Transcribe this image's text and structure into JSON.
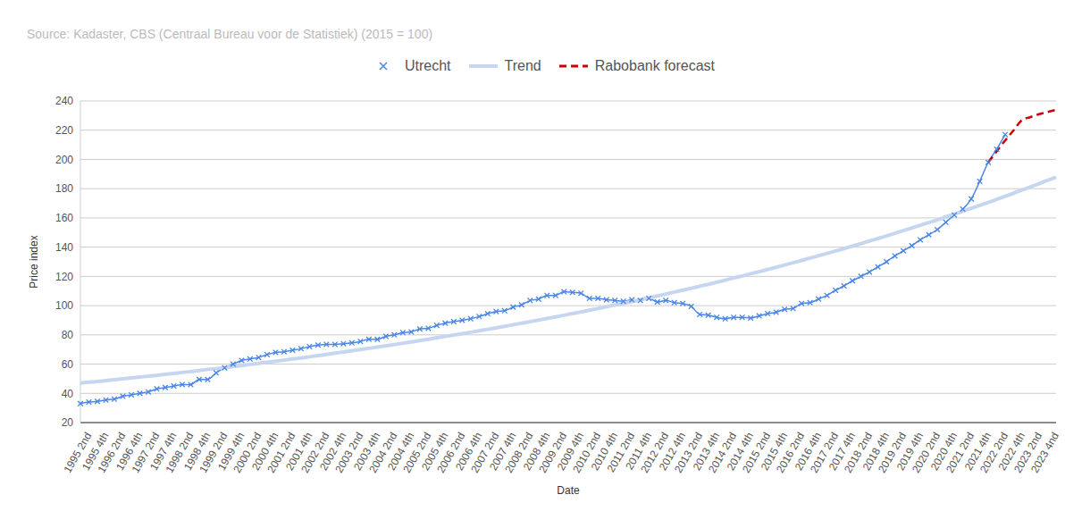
{
  "chart_data": {
    "type": "line",
    "title": "Source: Kadaster, CBS (Centraal Bureau voor de Statistiek) (2015 = 100)",
    "x_label": "Date",
    "y_label": "Price index",
    "legend": "top",
    "grid": true,
    "categories": [
      null,
      "1995 2nd",
      null,
      "1995 4th",
      null,
      "1996 2nd",
      null,
      "1996 4th",
      null,
      "1997 2nd",
      null,
      "1997 4th",
      null,
      "1998 2nd",
      null,
      "1998 4th",
      null,
      "1999 2nd",
      null,
      "1999 4th",
      null,
      "2000 2nd",
      null,
      "2000 4th",
      null,
      "2001 2nd",
      null,
      "2001 4th",
      null,
      "2002 2nd",
      null,
      "2002 4th",
      null,
      "2003 2nd",
      null,
      "2003 4th",
      null,
      "2004 2nd",
      null,
      "2004 4th",
      null,
      "2005 2nd",
      null,
      "2005 4th",
      null,
      "2006 2nd",
      null,
      "2006 4th",
      null,
      "2007 2nd",
      null,
      "2007 4th",
      null,
      "2008 2nd",
      null,
      "2008 4th",
      null,
      "2009 2nd",
      null,
      "2009 4th",
      null,
      "2010 2nd",
      null,
      "2010 4th",
      null,
      "2011 2nd",
      null,
      "2011 4th",
      null,
      "2012 2nd",
      null,
      "2012 4th",
      null,
      "2013 2nd",
      null,
      "2013 4th",
      null,
      "2014 2nd",
      null,
      "2014 4th",
      null,
      "2015 2nd",
      null,
      "2015 4th",
      null,
      "2016 2nd",
      null,
      "2016 4th",
      null,
      "2017 2nd",
      null,
      "2017 4th",
      null,
      "2018 2nd",
      null,
      "2018 4th",
      null,
      "2019 2nd",
      null,
      "2019 4th",
      null,
      "2020 2nd",
      null,
      "2020 4th",
      null,
      "2021 2nd",
      null,
      "2021 4th",
      null,
      "2022 2nd",
      null,
      "2022 4th",
      null,
      "2023 2nd",
      null,
      "2023 4nd"
    ],
    "series": [
      {
        "name": "Utrecht",
        "color": "#4a86e8",
        "marker": "x",
        "line_style": "solid",
        "values": [
          33,
          34,
          34.5,
          35.5,
          36,
          38,
          39,
          40,
          41,
          43,
          44,
          45,
          46,
          46,
          49.5,
          49.5,
          54,
          57.5,
          60,
          62.5,
          63.5,
          64.5,
          66.5,
          68,
          68.5,
          69.5,
          70.5,
          72,
          73,
          73.5,
          73.5,
          74,
          74.5,
          75.5,
          77,
          77,
          79,
          80,
          81.5,
          82,
          84,
          84.5,
          86.5,
          88,
          89,
          90,
          91,
          92.5,
          94.5,
          96,
          96.5,
          99,
          100.5,
          103.5,
          104.5,
          107,
          107,
          109.5,
          109,
          108.5,
          105,
          105,
          104,
          103.5,
          103,
          104,
          103.5,
          105,
          102.5,
          103.5,
          102,
          101.5,
          99.5,
          94,
          93.5,
          92,
          91,
          92,
          92,
          91.5,
          93,
          94.5,
          95.5,
          97.5,
          98,
          101.5,
          102,
          104.5,
          107,
          110.5,
          113.5,
          117,
          120,
          123,
          126.5,
          130,
          134,
          137.5,
          141,
          145,
          148.5,
          152,
          157,
          162,
          166,
          173,
          185,
          198,
          207,
          217,
          null,
          null,
          null,
          null,
          null,
          null
        ]
      },
      {
        "name": "Trend",
        "color": "#c6d5f0",
        "marker": "none",
        "line_style": "solid",
        "values": [
          47.0,
          47.6,
          48.1,
          48.7,
          49.3,
          49.9,
          50.5,
          51.1,
          51.7,
          52.3,
          53.0,
          53.6,
          54.3,
          54.9,
          55.6,
          56.3,
          56.9,
          57.6,
          58.3,
          59.0,
          59.8,
          60.5,
          61.2,
          62.0,
          62.7,
          63.5,
          64.2,
          65.0,
          65.8,
          66.6,
          67.5,
          68.3,
          69.1,
          70.0,
          70.8,
          71.7,
          72.5,
          73.4,
          74.3,
          75.2,
          76.1,
          77.0,
          78.0,
          78.9,
          79.9,
          80.8,
          81.8,
          82.8,
          83.8,
          84.8,
          85.9,
          86.9,
          88.0,
          89.0,
          90.1,
          91.2,
          92.3,
          93.4,
          94.6,
          95.7,
          96.8,
          98.0,
          99.2,
          100.4,
          101.6,
          102.8,
          104.1,
          105.3,
          106.6,
          107.9,
          109.3,
          110.6,
          111.9,
          113.3,
          114.6,
          116.0,
          117.4,
          118.9,
          120.3,
          121.8,
          123.2,
          124.7,
          126.2,
          127.8,
          129.3,
          130.9,
          132.5,
          134.1,
          135.7,
          137.4,
          139.0,
          140.7,
          142.4,
          144.2,
          145.9,
          147.7,
          149.5,
          151.3,
          153.1,
          155.0,
          156.8,
          158.7,
          160.7,
          162.6,
          164.6,
          166.6,
          168.6,
          170.6,
          172.7,
          174.8,
          176.9,
          179.1,
          181.2,
          183.4,
          185.7,
          187.9
        ]
      },
      {
        "name": "Rabobank forecast",
        "color": "#cc0000",
        "marker": "none",
        "line_style": "dashed",
        "values": [
          null,
          null,
          null,
          null,
          null,
          null,
          null,
          null,
          null,
          null,
          null,
          null,
          null,
          null,
          null,
          null,
          null,
          null,
          null,
          null,
          null,
          null,
          null,
          null,
          null,
          null,
          null,
          null,
          null,
          null,
          null,
          null,
          null,
          null,
          null,
          null,
          null,
          null,
          null,
          null,
          null,
          null,
          null,
          null,
          null,
          null,
          null,
          null,
          null,
          null,
          null,
          null,
          null,
          null,
          null,
          null,
          null,
          null,
          null,
          null,
          null,
          null,
          null,
          null,
          null,
          null,
          null,
          null,
          null,
          null,
          null,
          null,
          null,
          null,
          null,
          null,
          null,
          null,
          null,
          null,
          null,
          null,
          null,
          null,
          null,
          null,
          null,
          null,
          null,
          null,
          null,
          null,
          null,
          null,
          null,
          null,
          null,
          null,
          null,
          null,
          null,
          null,
          null,
          null,
          null,
          null,
          null,
          198,
          205.5,
          213,
          220,
          227,
          229,
          231,
          232.5,
          234
        ]
      }
    ],
    "ylim": [
      20,
      240
    ],
    "yticks": [
      20,
      40,
      60,
      80,
      100,
      120,
      140,
      160,
      180,
      200,
      220,
      240
    ]
  }
}
